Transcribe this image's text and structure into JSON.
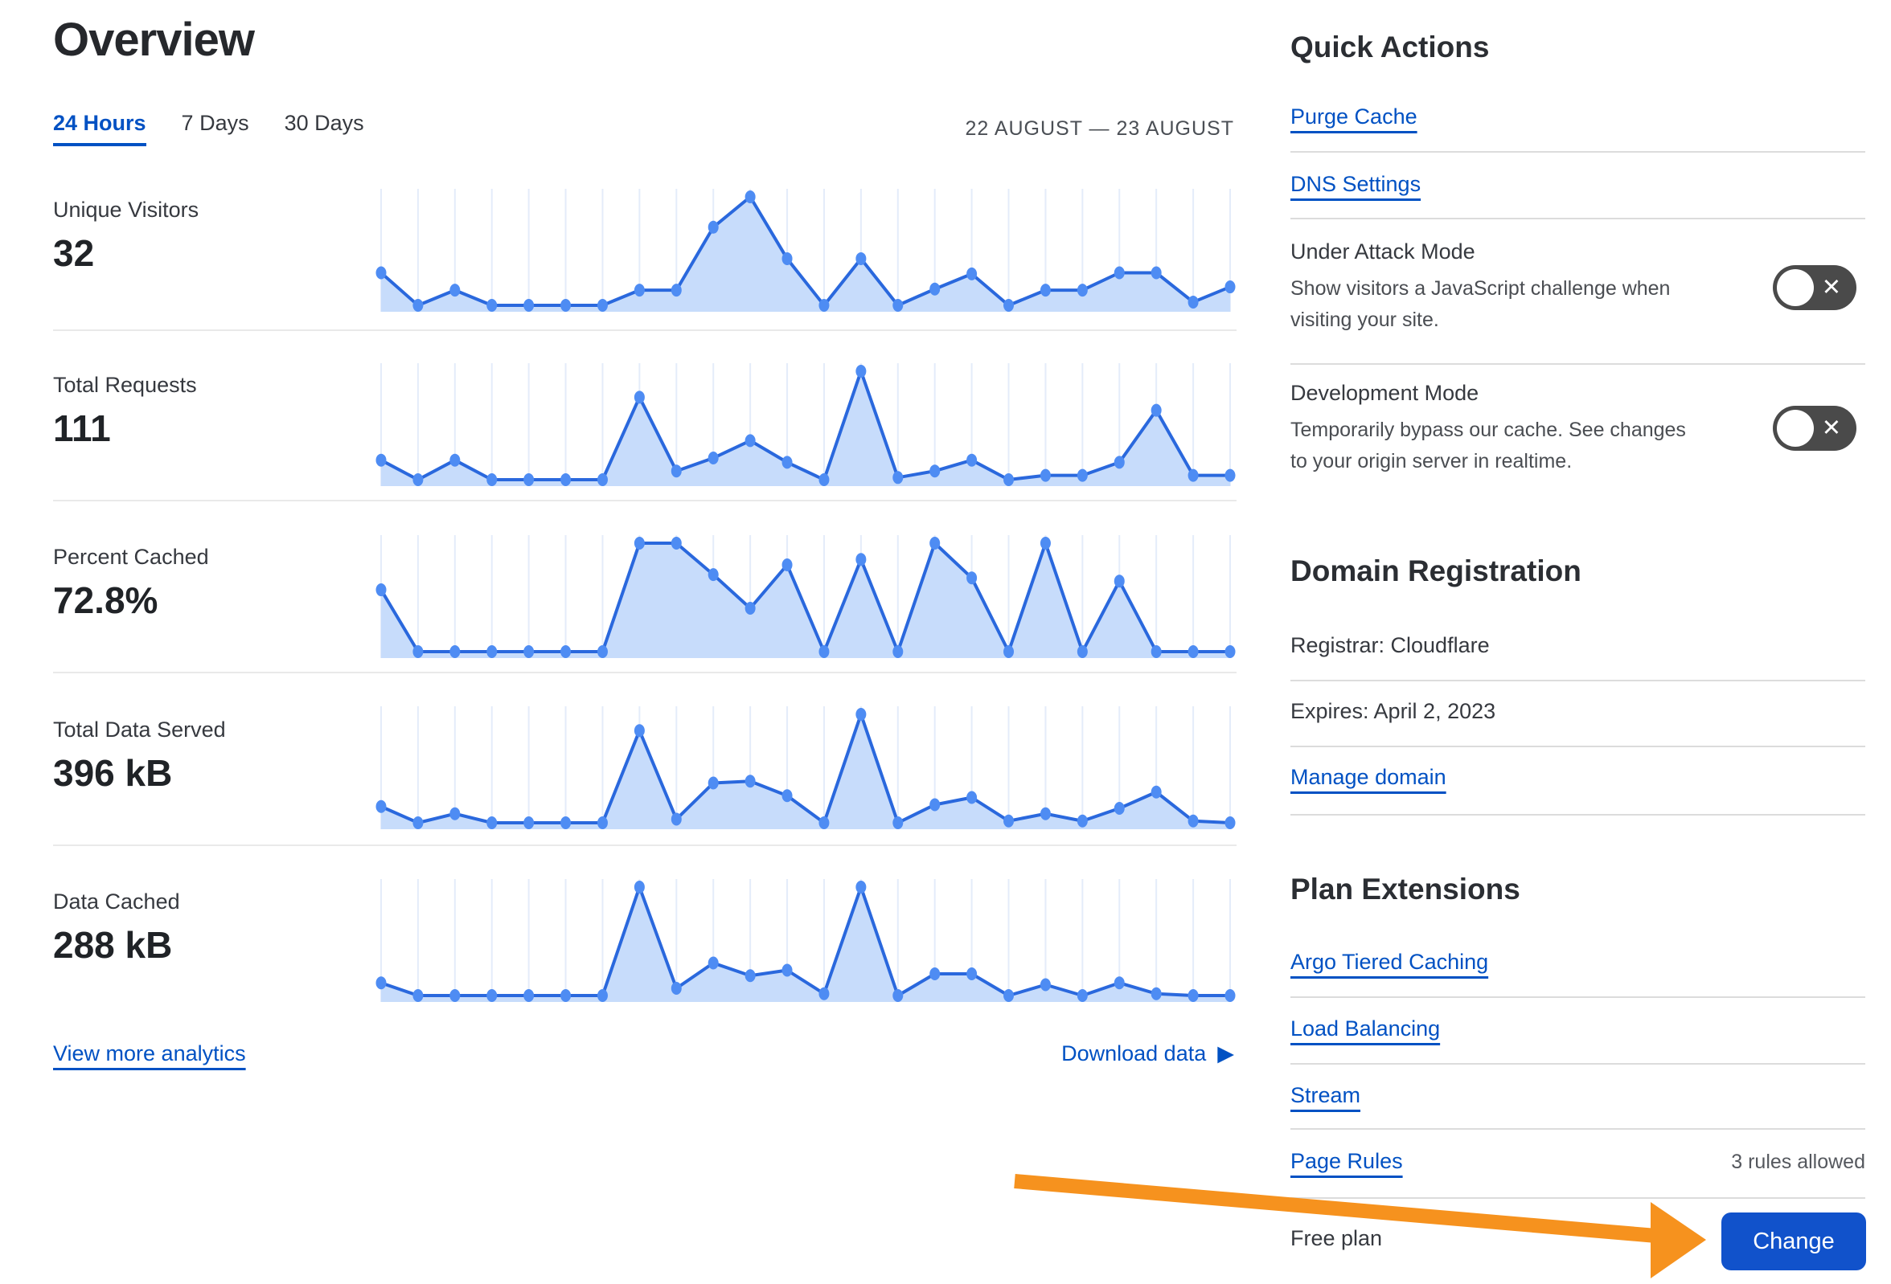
{
  "page": {
    "title": "Overview",
    "date_range": "22 AUGUST — 23 AUGUST"
  },
  "tabs": [
    {
      "label": "24 Hours",
      "active": true
    },
    {
      "label": "7 Days",
      "active": false
    },
    {
      "label": "30 Days",
      "active": false
    }
  ],
  "links": {
    "view_more": "View more analytics",
    "download": "Download data",
    "download_icon": "▶"
  },
  "colors": {
    "link_blue": "#0051c3",
    "button_blue": "#1152cb",
    "chart_line": "#2a68dd",
    "chart_fill": "#c7dcfb",
    "chart_dot": "#4e8cf3",
    "gridline": "#e4ecfa",
    "toggle_gray": "#4a4a4a",
    "arrow_orange": "#f6921e"
  },
  "chart_data": [
    {
      "type": "area",
      "label": "Unique Visitors",
      "display_value": "32",
      "x_range": "22 AUGUST — 23 AUGUST (hourly)",
      "values": [
        3,
        0,
        1.4,
        0,
        0,
        0,
        0,
        1.4,
        1.4,
        7.2,
        10,
        4.3,
        0,
        4.3,
        0,
        1.5,
        2.9,
        0,
        1.4,
        1.4,
        3,
        3,
        0.3,
        1.7
      ]
    },
    {
      "type": "area",
      "label": "Total Requests",
      "display_value": "111",
      "x_range": "22 AUGUST — 23 AUGUST (hourly)",
      "values": [
        4.5,
        0,
        4.5,
        0,
        0,
        0,
        0,
        19,
        2,
        5,
        9,
        4,
        0,
        25,
        0.5,
        2,
        4.5,
        0,
        1,
        1,
        4,
        16,
        1,
        1
      ]
    },
    {
      "type": "area",
      "label": "Percent Cached",
      "display_value": "72.8%",
      "x_range": "22 AUGUST — 23 AUGUST (hourly)",
      "values": [
        57,
        0,
        0,
        0,
        0,
        0,
        0,
        100,
        100,
        71,
        40,
        80,
        0,
        85,
        0,
        100,
        68,
        0,
        100,
        0,
        65,
        0,
        0,
        0
      ]
    },
    {
      "type": "area",
      "label": "Total Data Served",
      "display_value": "396 kB",
      "x_range": "22 AUGUST — 23 AUGUST (hourly)",
      "values": [
        9,
        0,
        5,
        0,
        0,
        0,
        0,
        51,
        2,
        22,
        23,
        15,
        0,
        60,
        0,
        10,
        14,
        1,
        5,
        1,
        8,
        17,
        1,
        0
      ]
    },
    {
      "type": "area",
      "label": "Data Cached",
      "display_value": "288 kB",
      "x_range": "22 AUGUST — 23 AUGUST (hourly)",
      "values": [
        7,
        0,
        0,
        0,
        0,
        0,
        0,
        60,
        4,
        18,
        11,
        14,
        1,
        60,
        0,
        12,
        12,
        0,
        6,
        0,
        7,
        1,
        0,
        0
      ]
    }
  ],
  "sidebar": {
    "quick_actions": {
      "title": "Quick Actions",
      "links": [
        "Purge Cache",
        "DNS Settings"
      ],
      "toggles": [
        {
          "name": "Under Attack Mode",
          "description": "Show visitors a JavaScript challenge when visiting your site.",
          "state": "off",
          "icon": "✕"
        },
        {
          "name": "Development Mode",
          "description": "Temporarily bypass our cache. See changes to your origin server in realtime.",
          "state": "off",
          "icon": "✕"
        }
      ]
    },
    "domain_registration": {
      "title": "Domain Registration",
      "registrar": "Registrar: Cloudflare",
      "expires": "Expires: April 2, 2023",
      "manage": "Manage domain"
    },
    "plan_extensions": {
      "title": "Plan Extensions",
      "links": [
        "Argo Tiered Caching",
        "Load Balancing",
        "Stream"
      ],
      "page_rules": {
        "label": "Page Rules",
        "note": "3 rules allowed"
      }
    },
    "plan": {
      "label": "Free plan",
      "button": "Change"
    }
  }
}
